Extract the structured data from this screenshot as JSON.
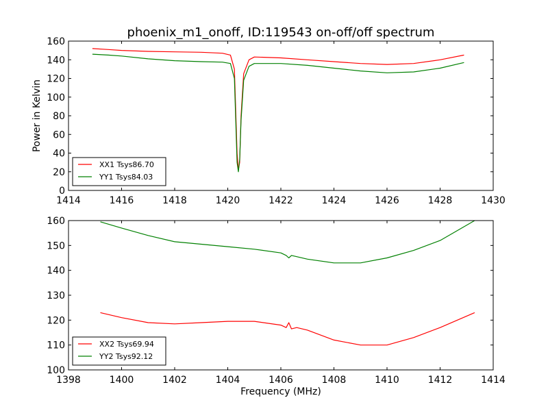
{
  "chart_data": [
    {
      "type": "line",
      "title": "phoenix_m1_onoff, ID:119543 on-off/off spectrum",
      "xlabel": "",
      "ylabel": "Power in Kelvin",
      "xlim": [
        1414,
        1430
      ],
      "ylim": [
        0,
        160
      ],
      "xticks": [
        "1414",
        "1416",
        "1418",
        "1420",
        "1422",
        "1424",
        "1426",
        "1428",
        "1430"
      ],
      "yticks": [
        "0",
        "20",
        "40",
        "60",
        "80",
        "100",
        "120",
        "140",
        "160"
      ],
      "grid": false,
      "legend_placement": "lower-left",
      "series": [
        {
          "name": "XX1 Tsys86.70",
          "color": "#ff0000",
          "x": [
            1414.9,
            1415.5,
            1416.0,
            1417.0,
            1418.0,
            1419.0,
            1419.8,
            1420.1,
            1420.25,
            1420.35,
            1420.4,
            1420.45,
            1420.5,
            1420.6,
            1420.8,
            1421.0,
            1422.0,
            1423.0,
            1424.0,
            1425.0,
            1426.0,
            1427.0,
            1428.0,
            1428.9
          ],
          "y": [
            152,
            151,
            150,
            149,
            148.5,
            148,
            147,
            145,
            130,
            40,
            22,
            30,
            80,
            125,
            140,
            143,
            142,
            140,
            138,
            136,
            135,
            136,
            140,
            145
          ]
        },
        {
          "name": "YY1 Tsys84.03",
          "color": "#008000",
          "x": [
            1414.9,
            1415.5,
            1416.0,
            1417.0,
            1418.0,
            1419.0,
            1419.8,
            1420.1,
            1420.25,
            1420.35,
            1420.4,
            1420.45,
            1420.5,
            1420.6,
            1420.8,
            1421.0,
            1422.0,
            1423.0,
            1424.0,
            1425.0,
            1426.0,
            1427.0,
            1428.0,
            1428.9
          ],
          "y": [
            146,
            145,
            144,
            141,
            139,
            138,
            137.5,
            136,
            120,
            30,
            20,
            33,
            75,
            118,
            133,
            136,
            136,
            134,
            131,
            128,
            126,
            127,
            131,
            137
          ]
        }
      ]
    },
    {
      "type": "line",
      "title": "",
      "xlabel": "Frequency (MHz)",
      "ylabel": "",
      "xlim": [
        1398,
        1414
      ],
      "ylim": [
        100,
        160
      ],
      "xticks": [
        "1398",
        "1400",
        "1402",
        "1404",
        "1406",
        "1408",
        "1410",
        "1412",
        "1414"
      ],
      "yticks": [
        "100",
        "110",
        "120",
        "130",
        "140",
        "150",
        "160"
      ],
      "grid": false,
      "legend_placement": "lower-left",
      "series": [
        {
          "name": "XX2 Tsys69.94",
          "color": "#ff0000",
          "x": [
            1399.2,
            1400.0,
            1401.0,
            1402.0,
            1403.0,
            1404.0,
            1405.0,
            1406.0,
            1406.2,
            1406.3,
            1406.4,
            1406.6,
            1407.0,
            1408.0,
            1409.0,
            1410.0,
            1411.0,
            1412.0,
            1413.3
          ],
          "y": [
            123,
            121,
            119,
            118.5,
            119,
            119.5,
            119.5,
            118,
            117,
            119,
            116.5,
            117,
            116,
            112,
            110,
            110,
            113,
            117,
            123
          ]
        },
        {
          "name": "YY2 Tsys92.12",
          "color": "#008000",
          "x": [
            1399.2,
            1400.0,
            1401.0,
            1402.0,
            1403.0,
            1404.0,
            1405.0,
            1406.0,
            1406.2,
            1406.3,
            1406.4,
            1406.6,
            1407.0,
            1408.0,
            1409.0,
            1410.0,
            1411.0,
            1412.0,
            1413.3
          ],
          "y": [
            159.5,
            157,
            154,
            151.5,
            150.5,
            149.5,
            148.5,
            147,
            146,
            145,
            146,
            145.5,
            144.5,
            143,
            143,
            145,
            148,
            152,
            160
          ]
        }
      ]
    }
  ]
}
